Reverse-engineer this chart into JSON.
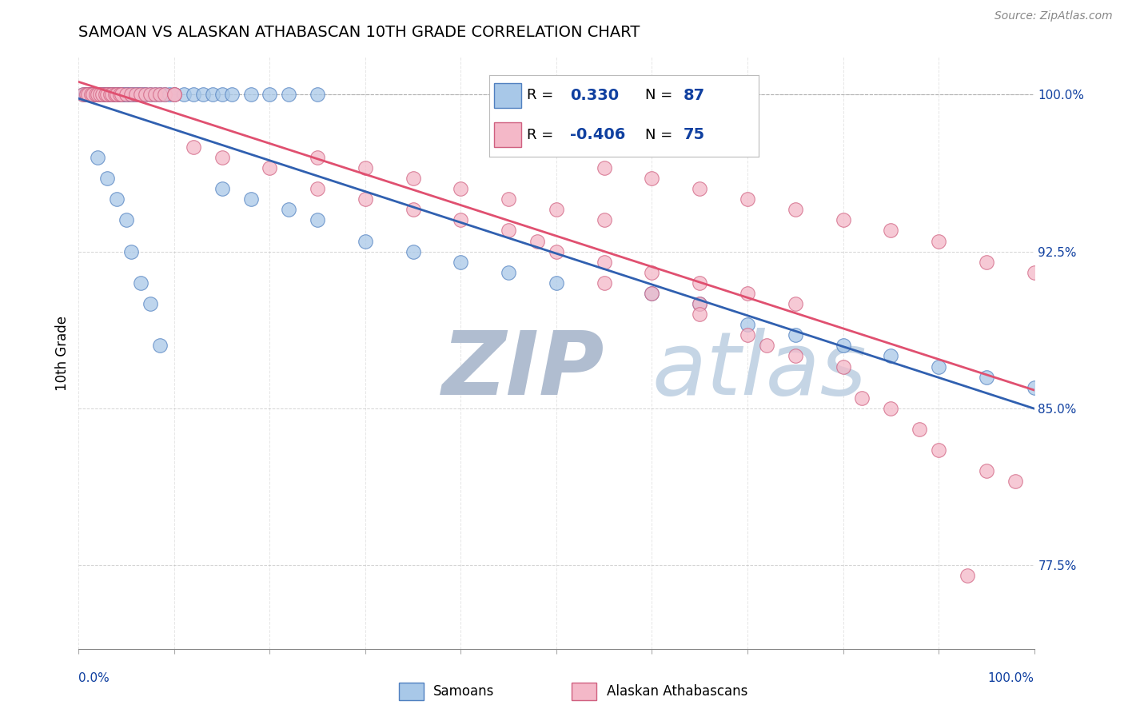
{
  "title": "SAMOAN VS ALASKAN ATHABASCAN 10TH GRADE CORRELATION CHART",
  "source": "Source: ZipAtlas.com",
  "ylabel": "10th Grade",
  "xrange": [
    0.0,
    1.0
  ],
  "yrange": [
    0.735,
    1.018
  ],
  "samoan_color": "#A8C8E8",
  "samoan_edge_color": "#5080C0",
  "athabascan_color": "#F4B8C8",
  "athabascan_edge_color": "#D06080",
  "samoan_line_color": "#3060B0",
  "athabascan_line_color": "#E05070",
  "watermark_zip": "#B8C8D8",
  "watermark_atlas": "#C8D8E8",
  "legend_text_color": "#1040A0",
  "legend_r_samoan": "0.330",
  "legend_n_samoan": "87",
  "legend_r_athabascan": "-0.406",
  "legend_n_athabascan": "75",
  "ytick_vals": [
    0.775,
    0.85,
    0.925,
    1.0
  ],
  "ytick_labels": [
    "77.5%",
    "85.0%",
    "92.5%",
    "100.0%"
  ],
  "samoan_x": [
    0.005,
    0.007,
    0.008,
    0.01,
    0.01,
    0.012,
    0.013,
    0.015,
    0.015,
    0.017,
    0.018,
    0.02,
    0.02,
    0.022,
    0.023,
    0.025,
    0.025,
    0.027,
    0.028,
    0.03,
    0.03,
    0.032,
    0.033,
    0.035,
    0.035,
    0.037,
    0.038,
    0.04,
    0.04,
    0.042,
    0.043,
    0.045,
    0.045,
    0.048,
    0.05,
    0.05,
    0.052,
    0.055,
    0.057,
    0.06,
    0.062,
    0.065,
    0.068,
    0.07,
    0.075,
    0.08,
    0.085,
    0.09,
    0.095,
    0.1,
    0.11,
    0.12,
    0.13,
    0.14,
    0.15,
    0.16,
    0.18,
    0.2,
    0.22,
    0.25,
    0.15,
    0.18,
    0.22,
    0.25,
    0.3,
    0.35,
    0.4,
    0.45,
    0.5,
    0.6,
    0.65,
    0.7,
    0.75,
    0.8,
    0.85,
    0.9,
    0.95,
    1.0,
    0.02,
    0.03,
    0.04,
    0.05,
    0.055,
    0.065,
    0.075,
    0.085
  ],
  "samoan_y": [
    1.0,
    1.0,
    1.0,
    1.0,
    1.0,
    1.0,
    1.0,
    1.0,
    1.0,
    1.0,
    1.0,
    1.0,
    1.0,
    1.0,
    1.0,
    1.0,
    1.0,
    1.0,
    1.0,
    1.0,
    1.0,
    1.0,
    1.0,
    1.0,
    1.0,
    1.0,
    1.0,
    1.0,
    1.0,
    1.0,
    1.0,
    1.0,
    1.0,
    1.0,
    1.0,
    1.0,
    1.0,
    1.0,
    1.0,
    1.0,
    1.0,
    1.0,
    1.0,
    1.0,
    1.0,
    1.0,
    1.0,
    1.0,
    1.0,
    1.0,
    1.0,
    1.0,
    1.0,
    1.0,
    1.0,
    1.0,
    1.0,
    1.0,
    1.0,
    1.0,
    0.955,
    0.95,
    0.945,
    0.94,
    0.93,
    0.925,
    0.92,
    0.915,
    0.91,
    0.905,
    0.9,
    0.89,
    0.885,
    0.88,
    0.875,
    0.87,
    0.865,
    0.86,
    0.97,
    0.96,
    0.95,
    0.94,
    0.925,
    0.91,
    0.9,
    0.88
  ],
  "athabascan_x": [
    0.005,
    0.008,
    0.01,
    0.013,
    0.015,
    0.018,
    0.02,
    0.022,
    0.025,
    0.028,
    0.03,
    0.033,
    0.035,
    0.038,
    0.04,
    0.043,
    0.045,
    0.05,
    0.055,
    0.06,
    0.065,
    0.07,
    0.075,
    0.08,
    0.085,
    0.09,
    0.1,
    0.1,
    0.12,
    0.25,
    0.3,
    0.35,
    0.4,
    0.45,
    0.5,
    0.55,
    0.55,
    0.6,
    0.65,
    0.7,
    0.75,
    0.8,
    0.85,
    0.9,
    0.95,
    1.0,
    0.15,
    0.2,
    0.25,
    0.3,
    0.35,
    0.4,
    0.45,
    0.48,
    0.5,
    0.55,
    0.6,
    0.65,
    0.7,
    0.75,
    0.55,
    0.6,
    0.65,
    0.65,
    0.7,
    0.72,
    0.75,
    0.8,
    0.82,
    0.85,
    0.88,
    0.9,
    0.93,
    0.95,
    0.98
  ],
  "athabascan_y": [
    1.0,
    1.0,
    1.0,
    1.0,
    1.0,
    1.0,
    1.0,
    1.0,
    1.0,
    1.0,
    1.0,
    1.0,
    1.0,
    1.0,
    1.0,
    1.0,
    1.0,
    1.0,
    1.0,
    1.0,
    1.0,
    1.0,
    1.0,
    1.0,
    1.0,
    1.0,
    1.0,
    1.0,
    0.975,
    0.97,
    0.965,
    0.96,
    0.955,
    0.95,
    0.945,
    0.965,
    0.94,
    0.96,
    0.955,
    0.95,
    0.945,
    0.94,
    0.935,
    0.93,
    0.92,
    0.915,
    0.97,
    0.965,
    0.955,
    0.95,
    0.945,
    0.94,
    0.935,
    0.93,
    0.925,
    0.92,
    0.915,
    0.91,
    0.905,
    0.9,
    0.91,
    0.905,
    0.9,
    0.895,
    0.885,
    0.88,
    0.875,
    0.87,
    0.855,
    0.85,
    0.84,
    0.83,
    0.77,
    0.82,
    0.815
  ]
}
